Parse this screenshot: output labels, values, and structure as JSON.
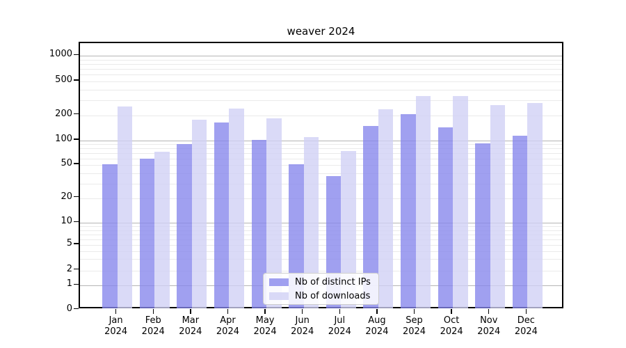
{
  "chart_data": {
    "type": "bar",
    "title": "weaver 2024",
    "categories": [
      "Jan 2024",
      "Feb 2024",
      "Mar 2024",
      "Apr 2024",
      "May 2024",
      "Jun 2024",
      "Jul 2024",
      "Aug 2024",
      "Sep 2024",
      "Oct 2024",
      "Nov 2024",
      "Dec 2024"
    ],
    "series": [
      {
        "name": "Nb of distinct IPs",
        "color": "#8585ec",
        "values": [
          51,
          60,
          90,
          165,
          102,
          51,
          37,
          149,
          205,
          145,
          92,
          115
        ]
      },
      {
        "name": "Nb of downloads",
        "color": "#cfcff5",
        "values": [
          255,
          73,
          176,
          242,
          185,
          110,
          74,
          237,
          340,
          340,
          265,
          278
        ]
      }
    ],
    "xlabel": "",
    "ylabel": "",
    "yscale": "log-like (compressed below 10, zero baseline)",
    "yticks": [
      0,
      1,
      2,
      5,
      10,
      20,
      50,
      100,
      200,
      500,
      1000
    ],
    "ylim": [
      0,
      1400
    ],
    "grid": "horizontal, log major and minor gridlines",
    "legend_position": "lower center",
    "colors": {
      "major_gridline": "#b4b4b4",
      "minor_gridline": "#eaeaea",
      "spine": "#000000",
      "background": "#ffffff"
    }
  }
}
